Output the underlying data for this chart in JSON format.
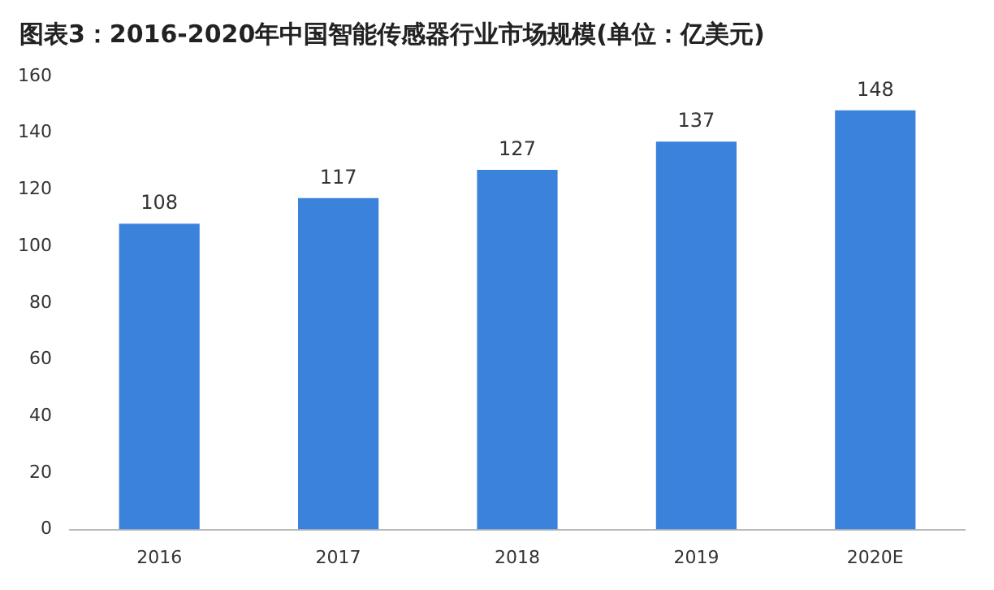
{
  "chart_data": {
    "type": "bar",
    "title": "图表3：2016-2020年中国智能传感器行业市场规模(单位：亿美元)",
    "categories": [
      "2016",
      "2017",
      "2018",
      "2019",
      "2020E"
    ],
    "values": [
      108,
      117,
      127,
      137,
      148
    ],
    "color": "#3b82dc",
    "ylim": [
      0,
      160
    ],
    "yticks": [
      0,
      20,
      40,
      60,
      80,
      100,
      120,
      140,
      160
    ],
    "grid": false,
    "data_labels": true
  }
}
